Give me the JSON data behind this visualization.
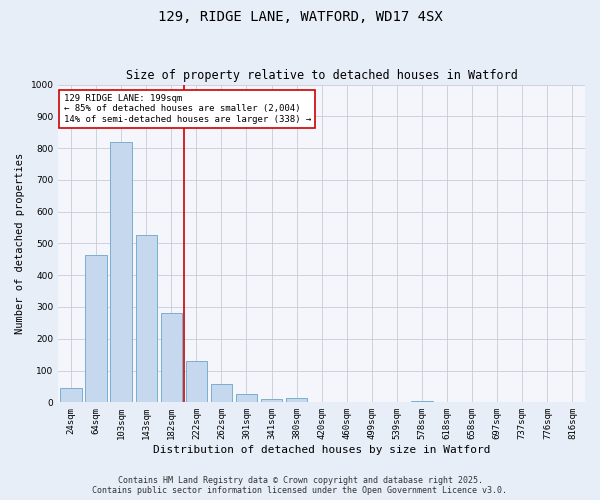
{
  "title": "129, RIDGE LANE, WATFORD, WD17 4SX",
  "subtitle": "Size of property relative to detached houses in Watford",
  "xlabel": "Distribution of detached houses by size in Watford",
  "ylabel": "Number of detached properties",
  "categories": [
    "24sqm",
    "64sqm",
    "103sqm",
    "143sqm",
    "182sqm",
    "222sqm",
    "262sqm",
    "301sqm",
    "341sqm",
    "380sqm",
    "420sqm",
    "460sqm",
    "499sqm",
    "539sqm",
    "578sqm",
    "618sqm",
    "658sqm",
    "697sqm",
    "737sqm",
    "776sqm",
    "816sqm"
  ],
  "values": [
    45,
    465,
    820,
    525,
    280,
    130,
    57,
    25,
    10,
    13,
    0,
    0,
    0,
    0,
    5,
    0,
    0,
    0,
    0,
    0,
    0
  ],
  "bar_color": "#c5d8ee",
  "bar_edge_color": "#7aaed0",
  "vline_x_index": 4.5,
  "vline_color": "#cc0000",
  "annotation_text": "129 RIDGE LANE: 199sqm\n← 85% of detached houses are smaller (2,004)\n14% of semi-detached houses are larger (338) →",
  "annotation_box_color": "#ffffff",
  "annotation_border_color": "#cc0000",
  "ylim": [
    0,
    1000
  ],
  "yticks": [
    0,
    100,
    200,
    300,
    400,
    500,
    600,
    700,
    800,
    900,
    1000
  ],
  "footer_line1": "Contains HM Land Registry data © Crown copyright and database right 2025.",
  "footer_line2": "Contains public sector information licensed under the Open Government Licence v3.0.",
  "bg_color": "#e8eef8",
  "plot_bg_color": "#f4f6fc",
  "grid_color": "#c8ccd8",
  "title_fontsize": 10,
  "subtitle_fontsize": 8.5,
  "tick_fontsize": 6.5,
  "ylabel_fontsize": 7.5,
  "xlabel_fontsize": 8,
  "annotation_fontsize": 6.5,
  "footer_fontsize": 6
}
